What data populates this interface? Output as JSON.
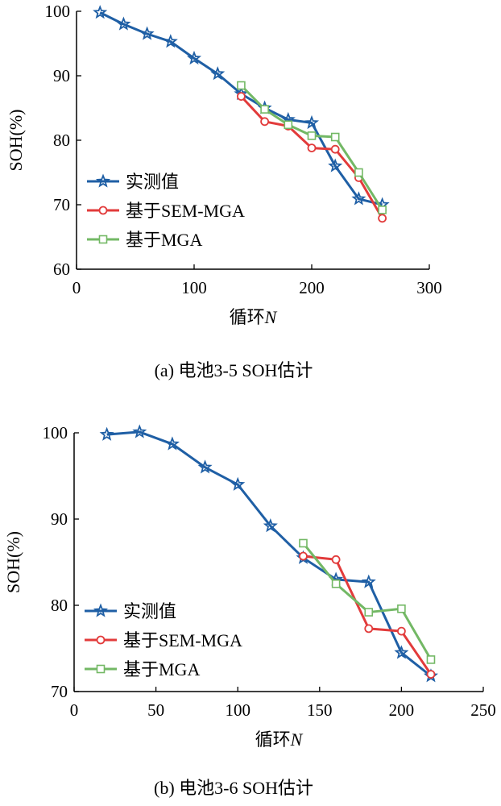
{
  "chart_data": [
    {
      "type": "line",
      "caption": "(a) 电池3-5 SOH估计",
      "xlabel_main": "循环",
      "xlabel_var": "N",
      "ylabel": "SOH(%)",
      "xlim": [
        0,
        300
      ],
      "ylim": [
        60,
        100
      ],
      "xticks": [
        0,
        100,
        200,
        300
      ],
      "yticks": [
        60,
        70,
        80,
        90,
        100
      ],
      "grid": false,
      "legend_position": "bottom-left",
      "series": [
        {
          "name": "实测值",
          "color": "#1f5fa5",
          "marker": "star",
          "x": [
            20,
            40,
            60,
            80,
            100,
            120,
            140,
            160,
            180,
            200,
            220,
            240,
            260
          ],
          "y": [
            99.8,
            98.0,
            96.5,
            95.3,
            92.7,
            90.3,
            87.2,
            85.0,
            83.2,
            82.7,
            76.0,
            70.9,
            70.0
          ]
        },
        {
          "name": "基于SEM-MGA",
          "color": "#e23b3b",
          "marker": "circle",
          "x": [
            140,
            160,
            180,
            200,
            220,
            240,
            260
          ],
          "y": [
            86.8,
            82.9,
            82.2,
            78.8,
            78.6,
            74.2,
            67.9
          ]
        },
        {
          "name": "基于MGA",
          "color": "#73b865",
          "marker": "square",
          "x": [
            140,
            160,
            180,
            200,
            220,
            240,
            260
          ],
          "y": [
            88.5,
            84.8,
            82.4,
            80.7,
            80.5,
            75.0,
            69.2
          ]
        }
      ]
    },
    {
      "type": "line",
      "caption": "(b) 电池3-6 SOH估计",
      "xlabel_main": "循环",
      "xlabel_var": "N",
      "ylabel": "SOH(%)",
      "xlim": [
        0,
        250
      ],
      "ylim": [
        70,
        100
      ],
      "xticks": [
        0,
        50,
        100,
        150,
        200,
        250
      ],
      "yticks": [
        70,
        80,
        90,
        100
      ],
      "grid": false,
      "legend_position": "bottom-left",
      "series": [
        {
          "name": "实测值",
          "color": "#1f5fa5",
          "marker": "star",
          "x": [
            20,
            40,
            60,
            80,
            100,
            120,
            140,
            160,
            180,
            200,
            218
          ],
          "y": [
            99.8,
            100.1,
            98.7,
            96.0,
            94.0,
            89.2,
            85.5,
            83.0,
            82.7,
            74.5,
            71.8
          ]
        },
        {
          "name": "基于SEM-MGA",
          "color": "#e23b3b",
          "marker": "circle",
          "x": [
            140,
            160,
            180,
            200,
            218
          ],
          "y": [
            85.7,
            85.3,
            77.3,
            77.0,
            72.0
          ]
        },
        {
          "name": "基于MGA",
          "color": "#73b865",
          "marker": "square",
          "x": [
            140,
            160,
            180,
            200,
            218
          ],
          "y": [
            87.2,
            82.5,
            79.2,
            79.6,
            73.7
          ]
        }
      ]
    }
  ]
}
